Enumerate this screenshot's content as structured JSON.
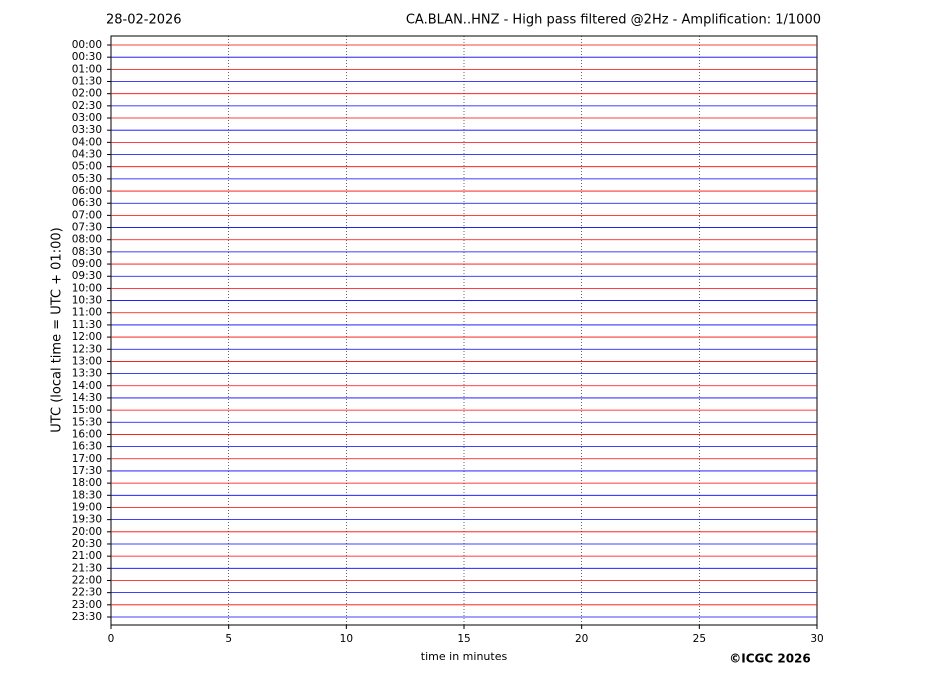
{
  "chart_data": {
    "type": "helicorder",
    "date": "28-02-2026",
    "title": "CA.BLAN..HNZ - High pass filtered @2Hz - Amplification: 1/1000",
    "ylabel": "UTC (local time = UTC + 01:00)",
    "xlabel": "time in minutes",
    "credit": "©ICGC 2026",
    "categories": [
      "00:00",
      "00:30",
      "01:00",
      "01:30",
      "02:00",
      "02:30",
      "03:00",
      "03:30",
      "04:00",
      "04:30",
      "05:00",
      "05:30",
      "06:00",
      "06:30",
      "07:00",
      "07:30",
      "08:00",
      "08:30",
      "09:00",
      "09:30",
      "10:00",
      "10:30",
      "11:00",
      "11:30",
      "12:00",
      "12:30",
      "13:00",
      "13:30",
      "14:00",
      "14:30",
      "15:00",
      "15:30",
      "16:00",
      "16:30",
      "17:00",
      "17:30",
      "18:00",
      "18:30",
      "19:00",
      "19:30",
      "20:00",
      "20:30",
      "21:00",
      "21:30",
      "22:00",
      "22:30",
      "23:00",
      "23:30"
    ],
    "colors": [
      "#ff0000",
      "#0000ff"
    ],
    "xlim": [
      0,
      30
    ],
    "xticks": [
      0,
      5,
      10,
      15,
      20,
      25,
      30
    ],
    "grid": true
  }
}
